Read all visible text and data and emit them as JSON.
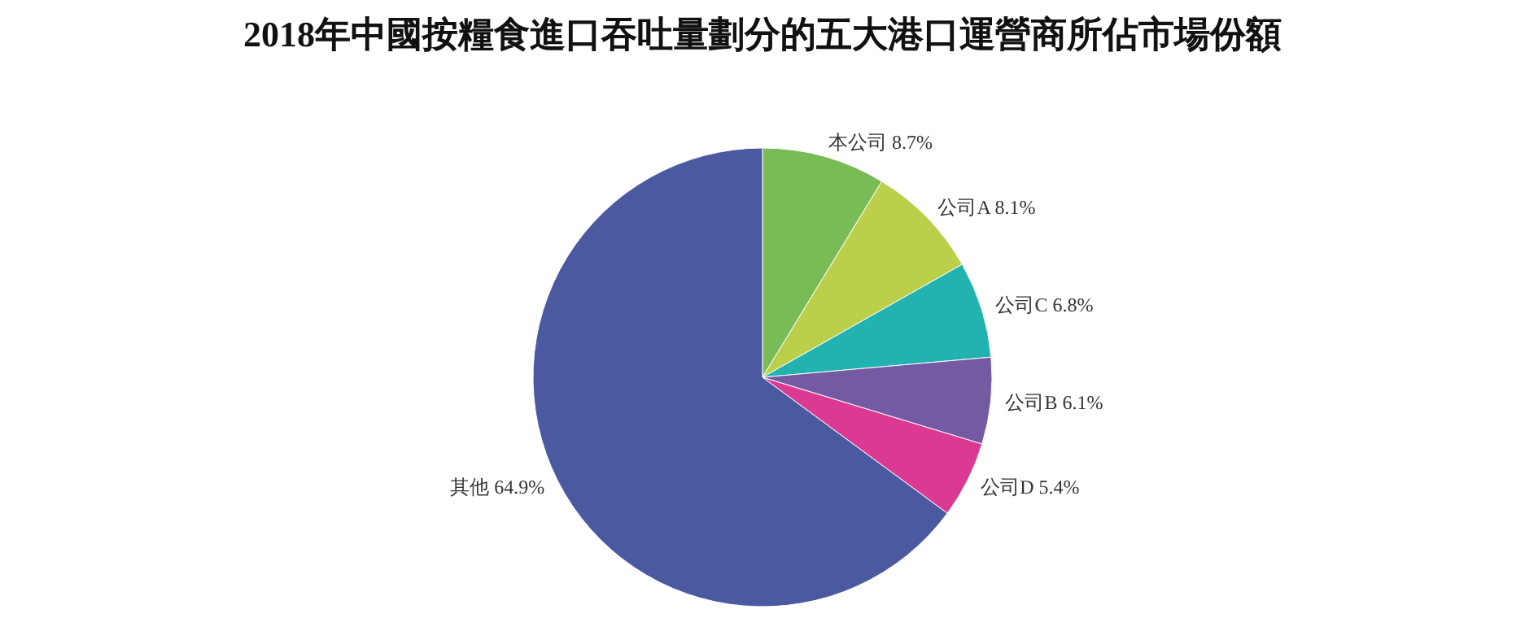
{
  "chart_data": {
    "type": "pie",
    "title": "2018年中國按糧食進口吞吐量劃分的五大港口運營商所佔市場份額",
    "categories": [
      "本公司",
      "公司A",
      "公司C",
      "公司B",
      "公司D",
      "其他"
    ],
    "values": [
      8.7,
      8.1,
      6.8,
      6.1,
      5.4,
      64.9
    ],
    "colors": [
      "#79bb55",
      "#bccf4a",
      "#22b3b0",
      "#7459a3",
      "#dc3a92",
      "#4b5aa0"
    ],
    "value_labels": [
      "8.7%",
      "8.1%",
      "6.8%",
      "6.1%",
      "5.4%",
      "64.9%"
    ],
    "legend": false
  }
}
